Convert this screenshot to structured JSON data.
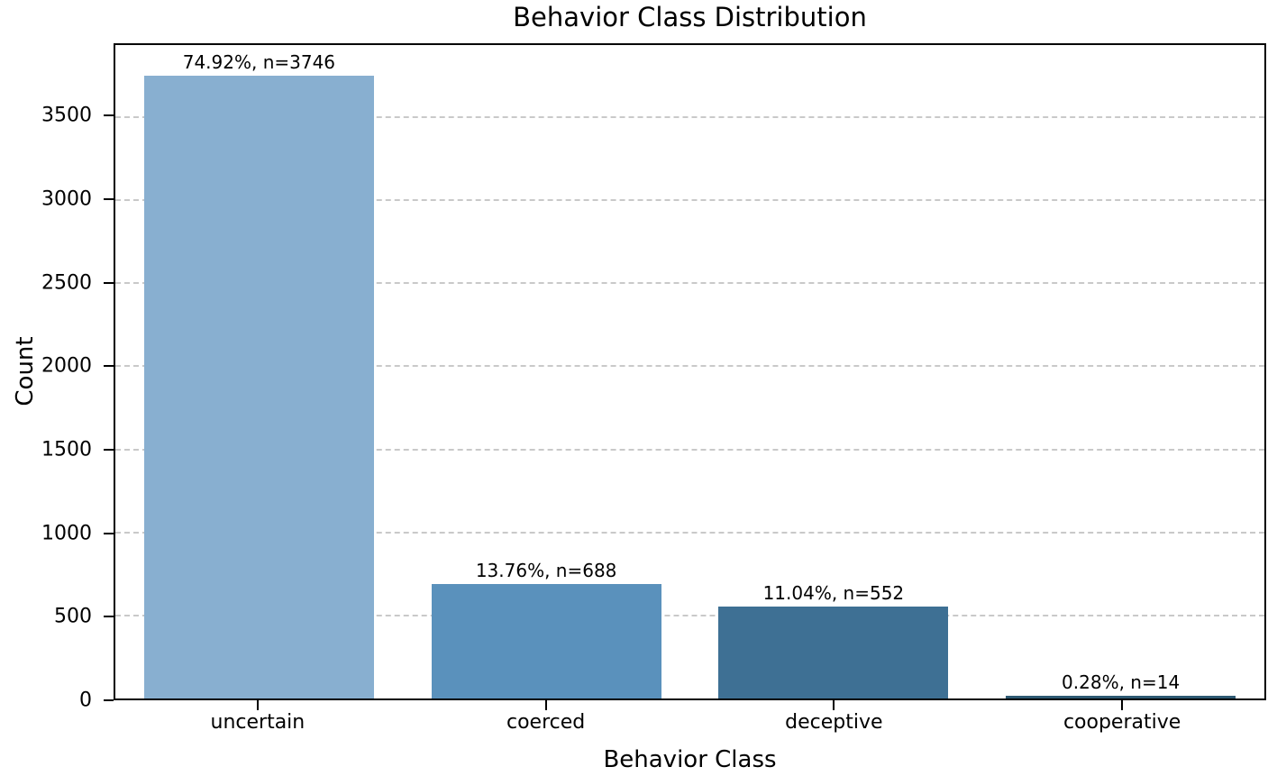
{
  "chart_data": {
    "type": "bar",
    "title": "Behavior Class Distribution",
    "xlabel": "Behavior Class",
    "ylabel": "Count",
    "categories": [
      "uncertain",
      "coerced",
      "deceptive",
      "cooperative"
    ],
    "values": [
      3746,
      688,
      552,
      14
    ],
    "percentages": [
      74.92,
      13.76,
      11.04,
      0.28
    ],
    "bar_labels": [
      "74.92%, n=3746",
      "13.76%, n=688",
      "11.04%, n=552",
      "0.28%, n=14"
    ],
    "bar_colors": [
      "#88afd0",
      "#5a91bc",
      "#3e7094",
      "#2d5972"
    ],
    "yticks": [
      0,
      500,
      1000,
      1500,
      2000,
      2500,
      3000,
      3500
    ],
    "ylim": [
      0,
      3933
    ],
    "bar_width_fraction": 0.8,
    "grid": "horizontal-dashed",
    "grid_color": "#c9c9c9",
    "legend": "none",
    "background_color": "#ffffff",
    "spine_color": "#000000"
  }
}
